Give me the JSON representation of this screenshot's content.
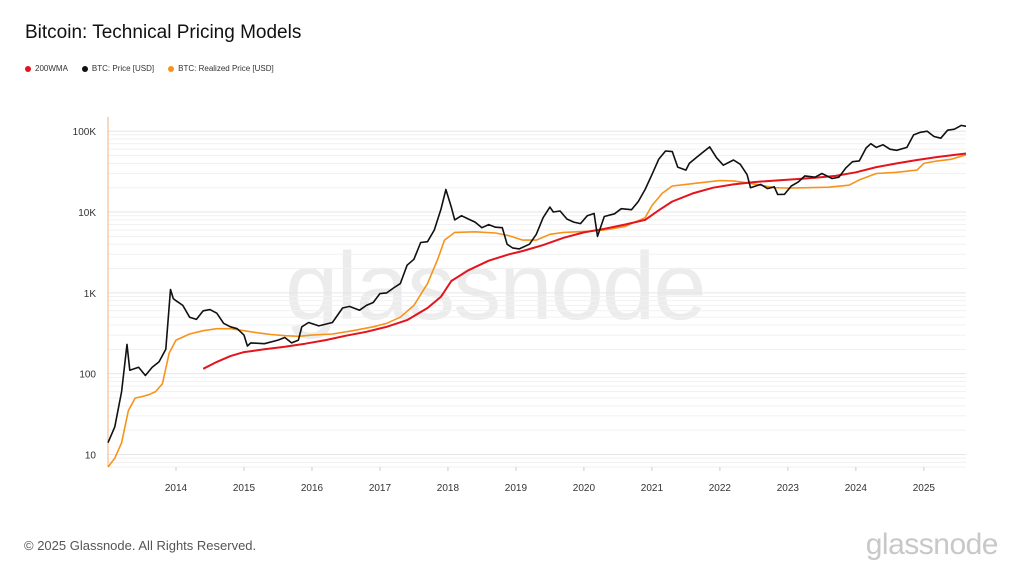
{
  "title": "Bitcoin: Technical Pricing Models",
  "legend": [
    {
      "label": "200WMA",
      "color": "#e3141b"
    },
    {
      "label": "BTC: Price [USD]",
      "color": "#111111"
    },
    {
      "label": "BTC: Realized Price [USD]",
      "color": "#f7931a"
    }
  ],
  "watermark": "glassnode",
  "footer": "© 2025 Glassnode. All Rights Reserved.",
  "brand": "glassnode",
  "chart_data": {
    "type": "line",
    "title": "Bitcoin: Technical Pricing Models",
    "y_scale": "log",
    "ylim": [
      7,
      150000
    ],
    "xlim": [
      2013.0,
      2025.62
    ],
    "x_ticks": [
      2014,
      2015,
      2016,
      2017,
      2018,
      2019,
      2020,
      2021,
      2022,
      2023,
      2024,
      2025
    ],
    "x_tick_labels": [
      "2014",
      "2015",
      "2016",
      "2017",
      "2018",
      "2019",
      "2020",
      "2021",
      "2022",
      "2023",
      "2024",
      "2025"
    ],
    "y_ticks": [
      10,
      100,
      1000,
      10000,
      100000
    ],
    "y_tick_labels": [
      "10",
      "100",
      "1K",
      "10K",
      "100K"
    ],
    "grid": true,
    "legend_position": "top-left",
    "series": [
      {
        "name": "BTC: Price [USD]",
        "color": "#111111",
        "points": [
          [
            2013.0,
            14
          ],
          [
            2013.1,
            22
          ],
          [
            2013.2,
            60
          ],
          [
            2013.28,
            230
          ],
          [
            2013.32,
            110
          ],
          [
            2013.45,
            120
          ],
          [
            2013.55,
            95
          ],
          [
            2013.65,
            120
          ],
          [
            2013.75,
            140
          ],
          [
            2013.85,
            200
          ],
          [
            2013.92,
            1100
          ],
          [
            2013.96,
            850
          ],
          [
            2014.0,
            800
          ],
          [
            2014.1,
            700
          ],
          [
            2014.2,
            500
          ],
          [
            2014.3,
            470
          ],
          [
            2014.4,
            600
          ],
          [
            2014.5,
            620
          ],
          [
            2014.6,
            560
          ],
          [
            2014.7,
            420
          ],
          [
            2014.8,
            380
          ],
          [
            2014.9,
            360
          ],
          [
            2015.0,
            300
          ],
          [
            2015.05,
            220
          ],
          [
            2015.1,
            240
          ],
          [
            2015.3,
            235
          ],
          [
            2015.5,
            260
          ],
          [
            2015.6,
            280
          ],
          [
            2015.7,
            240
          ],
          [
            2015.8,
            260
          ],
          [
            2015.85,
            380
          ],
          [
            2015.95,
            430
          ],
          [
            2016.1,
            390
          ],
          [
            2016.3,
            430
          ],
          [
            2016.45,
            650
          ],
          [
            2016.55,
            680
          ],
          [
            2016.7,
            610
          ],
          [
            2016.8,
            700
          ],
          [
            2016.9,
            760
          ],
          [
            2017.0,
            980
          ],
          [
            2017.1,
            1000
          ],
          [
            2017.2,
            1150
          ],
          [
            2017.3,
            1300
          ],
          [
            2017.4,
            2200
          ],
          [
            2017.5,
            2600
          ],
          [
            2017.6,
            4200
          ],
          [
            2017.7,
            4300
          ],
          [
            2017.8,
            6000
          ],
          [
            2017.9,
            11000
          ],
          [
            2017.97,
            19000
          ],
          [
            2018.05,
            11500
          ],
          [
            2018.1,
            8000
          ],
          [
            2018.2,
            9000
          ],
          [
            2018.3,
            8200
          ],
          [
            2018.4,
            7500
          ],
          [
            2018.5,
            6400
          ],
          [
            2018.6,
            7000
          ],
          [
            2018.7,
            6500
          ],
          [
            2018.8,
            6400
          ],
          [
            2018.87,
            4000
          ],
          [
            2018.95,
            3600
          ],
          [
            2019.05,
            3500
          ],
          [
            2019.2,
            4000
          ],
          [
            2019.3,
            5300
          ],
          [
            2019.4,
            8500
          ],
          [
            2019.5,
            11500
          ],
          [
            2019.55,
            10000
          ],
          [
            2019.65,
            10300
          ],
          [
            2019.75,
            8200
          ],
          [
            2019.85,
            7500
          ],
          [
            2019.95,
            7200
          ],
          [
            2020.05,
            9000
          ],
          [
            2020.15,
            9600
          ],
          [
            2020.2,
            5000
          ],
          [
            2020.3,
            8800
          ],
          [
            2020.45,
            9500
          ],
          [
            2020.55,
            11000
          ],
          [
            2020.7,
            10700
          ],
          [
            2020.8,
            13500
          ],
          [
            2020.9,
            19000
          ],
          [
            2021.0,
            29000
          ],
          [
            2021.1,
            45000
          ],
          [
            2021.2,
            57000
          ],
          [
            2021.3,
            56000
          ],
          [
            2021.38,
            36000
          ],
          [
            2021.5,
            33000
          ],
          [
            2021.55,
            40000
          ],
          [
            2021.65,
            47000
          ],
          [
            2021.75,
            55000
          ],
          [
            2021.85,
            64000
          ],
          [
            2021.95,
            47000
          ],
          [
            2022.05,
            38000
          ],
          [
            2022.2,
            44000
          ],
          [
            2022.3,
            39000
          ],
          [
            2022.4,
            29000
          ],
          [
            2022.45,
            20000
          ],
          [
            2022.6,
            22000
          ],
          [
            2022.7,
            19500
          ],
          [
            2022.8,
            20500
          ],
          [
            2022.85,
            16500
          ],
          [
            2022.95,
            16600
          ],
          [
            2023.05,
            21000
          ],
          [
            2023.15,
            23500
          ],
          [
            2023.25,
            28000
          ],
          [
            2023.4,
            27000
          ],
          [
            2023.5,
            30000
          ],
          [
            2023.65,
            26000
          ],
          [
            2023.75,
            27000
          ],
          [
            2023.85,
            35000
          ],
          [
            2023.95,
            42000
          ],
          [
            2024.05,
            43000
          ],
          [
            2024.15,
            62000
          ],
          [
            2024.22,
            70000
          ],
          [
            2024.3,
            63000
          ],
          [
            2024.4,
            68000
          ],
          [
            2024.5,
            60000
          ],
          [
            2024.6,
            58000
          ],
          [
            2024.75,
            63000
          ],
          [
            2024.85,
            90000
          ],
          [
            2024.95,
            97000
          ],
          [
            2025.05,
            100000
          ],
          [
            2025.15,
            86000
          ],
          [
            2025.25,
            82000
          ],
          [
            2025.35,
            103000
          ],
          [
            2025.45,
            106000
          ],
          [
            2025.55,
            118000
          ],
          [
            2025.62,
            115000
          ]
        ]
      },
      {
        "name": "BTC: Realized Price [USD]",
        "color": "#f7931a",
        "points": [
          [
            2013.0,
            7
          ],
          [
            2013.1,
            9
          ],
          [
            2013.2,
            14
          ],
          [
            2013.3,
            35
          ],
          [
            2013.4,
            50
          ],
          [
            2013.5,
            52
          ],
          [
            2013.6,
            55
          ],
          [
            2013.7,
            60
          ],
          [
            2013.8,
            75
          ],
          [
            2013.9,
            180
          ],
          [
            2014.0,
            260
          ],
          [
            2014.2,
            310
          ],
          [
            2014.4,
            340
          ],
          [
            2014.6,
            360
          ],
          [
            2014.8,
            360
          ],
          [
            2015.0,
            340
          ],
          [
            2015.2,
            320
          ],
          [
            2015.4,
            305
          ],
          [
            2015.6,
            295
          ],
          [
            2015.8,
            290
          ],
          [
            2016.0,
            300
          ],
          [
            2016.3,
            310
          ],
          [
            2016.6,
            340
          ],
          [
            2016.9,
            380
          ],
          [
            2017.1,
            420
          ],
          [
            2017.3,
            500
          ],
          [
            2017.5,
            700
          ],
          [
            2017.7,
            1300
          ],
          [
            2017.85,
            2600
          ],
          [
            2017.95,
            4500
          ],
          [
            2018.1,
            5600
          ],
          [
            2018.4,
            5700
          ],
          [
            2018.7,
            5500
          ],
          [
            2018.9,
            5100
          ],
          [
            2019.1,
            4500
          ],
          [
            2019.3,
            4500
          ],
          [
            2019.5,
            5300
          ],
          [
            2019.7,
            5600
          ],
          [
            2019.9,
            5700
          ],
          [
            2020.1,
            5800
          ],
          [
            2020.3,
            6000
          ],
          [
            2020.6,
            6600
          ],
          [
            2020.9,
            8500
          ],
          [
            2021.0,
            12000
          ],
          [
            2021.15,
            17000
          ],
          [
            2021.3,
            21000
          ],
          [
            2021.5,
            22000
          ],
          [
            2021.7,
            23000
          ],
          [
            2021.9,
            24000
          ],
          [
            2022.0,
            24500
          ],
          [
            2022.2,
            24300
          ],
          [
            2022.4,
            23000
          ],
          [
            2022.6,
            21500
          ],
          [
            2022.8,
            20000
          ],
          [
            2023.0,
            19800
          ],
          [
            2023.3,
            20000
          ],
          [
            2023.6,
            20300
          ],
          [
            2023.9,
            21500
          ],
          [
            2024.05,
            25000
          ],
          [
            2024.3,
            30000
          ],
          [
            2024.6,
            31000
          ],
          [
            2024.9,
            33000
          ],
          [
            2025.0,
            40000
          ],
          [
            2025.2,
            43000
          ],
          [
            2025.4,
            45000
          ],
          [
            2025.62,
            51000
          ]
        ]
      },
      {
        "name": "200WMA",
        "color": "#e3141b",
        "points": [
          [
            2014.4,
            115
          ],
          [
            2014.6,
            140
          ],
          [
            2014.8,
            165
          ],
          [
            2015.0,
            185
          ],
          [
            2015.3,
            200
          ],
          [
            2015.6,
            215
          ],
          [
            2015.9,
            235
          ],
          [
            2016.2,
            260
          ],
          [
            2016.5,
            295
          ],
          [
            2016.8,
            330
          ],
          [
            2017.1,
            380
          ],
          [
            2017.4,
            460
          ],
          [
            2017.7,
            650
          ],
          [
            2017.9,
            900
          ],
          [
            2018.05,
            1400
          ],
          [
            2018.3,
            1900
          ],
          [
            2018.6,
            2500
          ],
          [
            2018.9,
            3000
          ],
          [
            2019.1,
            3300
          ],
          [
            2019.4,
            3900
          ],
          [
            2019.7,
            4800
          ],
          [
            2020.0,
            5600
          ],
          [
            2020.3,
            6200
          ],
          [
            2020.6,
            7000
          ],
          [
            2020.9,
            8000
          ],
          [
            2021.1,
            10500
          ],
          [
            2021.3,
            13500
          ],
          [
            2021.6,
            17000
          ],
          [
            2021.9,
            20000
          ],
          [
            2022.2,
            22000
          ],
          [
            2022.5,
            23500
          ],
          [
            2022.8,
            24500
          ],
          [
            2023.1,
            25500
          ],
          [
            2023.4,
            26500
          ],
          [
            2023.7,
            28000
          ],
          [
            2024.0,
            31000
          ],
          [
            2024.3,
            36000
          ],
          [
            2024.6,
            40000
          ],
          [
            2024.9,
            44000
          ],
          [
            2025.2,
            48000
          ],
          [
            2025.62,
            53000
          ]
        ]
      }
    ]
  }
}
